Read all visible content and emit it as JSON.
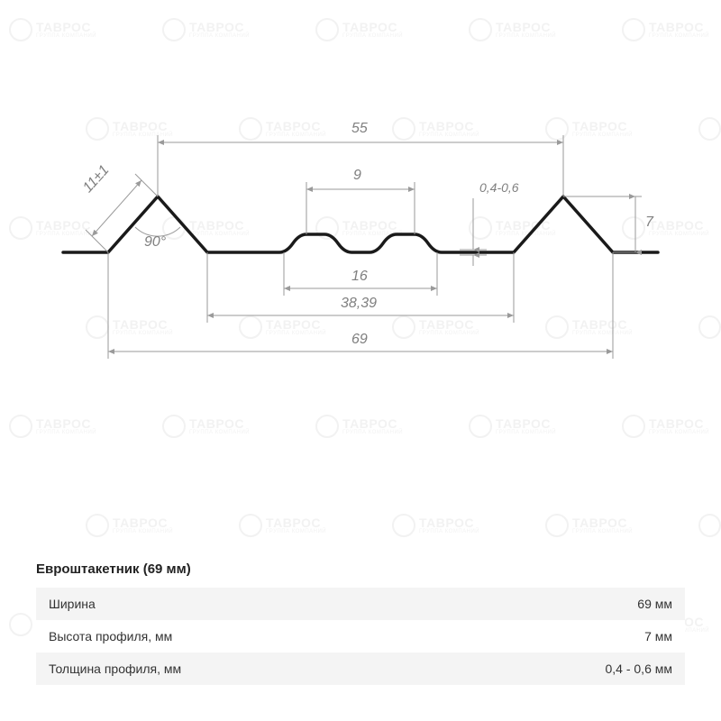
{
  "watermark": {
    "brand": "ТАВРОС",
    "subtitle": "ГРУППА КОМПАНИЙ"
  },
  "diagram": {
    "type": "technical-profile",
    "stroke_color": "#1a1a1a",
    "stroke_width": 3.5,
    "dim_color": "#808080",
    "dim_line_color": "#9a9a9a",
    "labels": {
      "edge_len": "11±1",
      "angle": "90°",
      "top_span": "55",
      "bump_top": "9",
      "bump_span": "16",
      "valley_span": "38,39",
      "total_span": "69",
      "thickness": "0,4-0,6",
      "height": "7"
    }
  },
  "spec": {
    "title": "Евроштакетник (69 мм)",
    "rows": [
      {
        "label": "Ширина",
        "value": "69 мм"
      },
      {
        "label": "Высота профиля, мм",
        "value": "7 мм"
      },
      {
        "label": "Толщина профиля, мм",
        "value": "0,4 - 0,6 мм"
      }
    ]
  }
}
